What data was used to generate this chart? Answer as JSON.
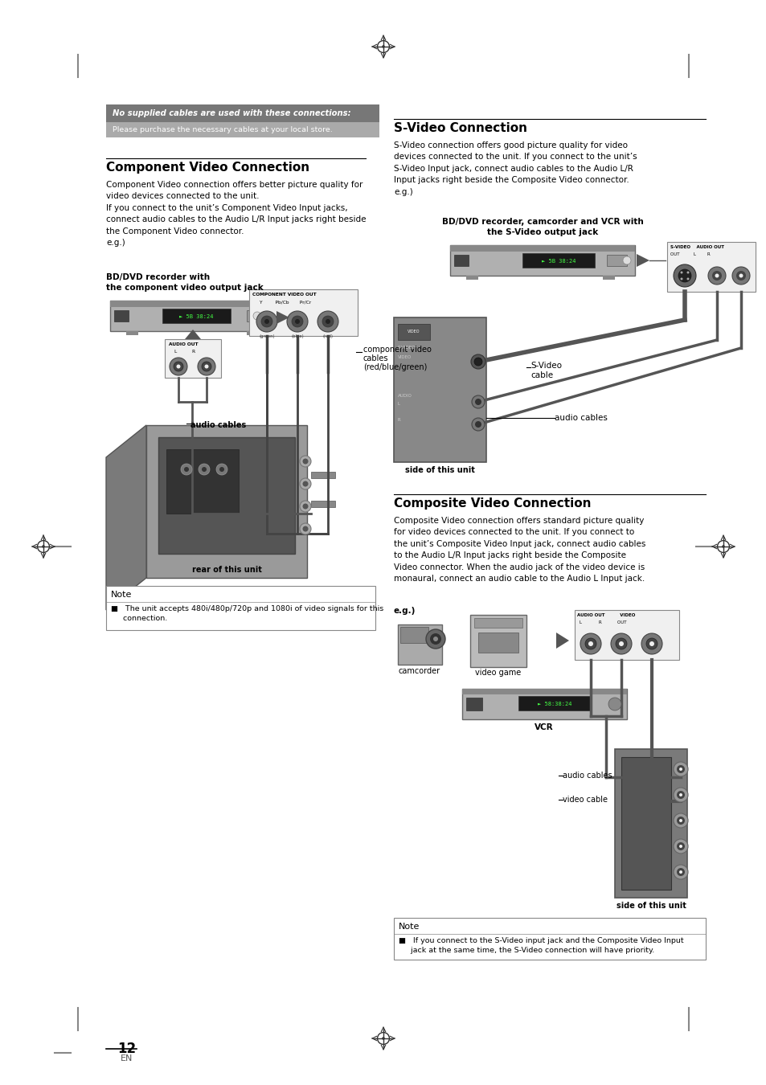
{
  "page_bg": "#ffffff",
  "page_number": "12",
  "page_number_sub": "EN",
  "notice_text1": "No supplied cables are used with these connections:",
  "notice_text2": "Please purchase the necessary cables at your local store.",
  "left_section_title": "Component Video Connection",
  "left_body_text": "Component Video connection offers better picture quality for\nvideo devices connected to the unit.\nIf you connect to the unit’s Component Video Input jacks,\nconnect audio cables to the Audio L/R Input jacks right beside\nthe Component Video connector.\ne.g.)",
  "left_device_label1": "BD/DVD recorder with",
  "left_device_label2": "the component video output jack",
  "left_cable_label1": "component video",
  "left_cable_label1b": "cables",
  "left_cable_label1c": "(red/blue/green)",
  "left_cable_label2": "audio cables",
  "left_unit_label": "rear of this unit",
  "left_note_title": "Note",
  "left_note_text1": "■   The unit accepts 480i/480p/720p and 1080i of video signals for this",
  "left_note_text2": "     connection.",
  "right_section_title": "S-Video Connection",
  "right_body_text": "S-Video connection offers good picture quality for video\ndevices connected to the unit. If you connect to the unit’s\nS-Video Input jack, connect audio cables to the Audio L/R\nInput jacks right beside the Composite Video connector.\ne.g.)",
  "right_device_label1": "BD/DVD recorder, camcorder and VCR with",
  "right_device_label2": "the S-Video output jack",
  "right_svideo_label1": "S-Video",
  "right_svideo_label2": "cable",
  "right_audio_label": "audio cables",
  "right_unit_label": "side of this unit",
  "right2_section_title": "Composite Video Connection",
  "right2_body_text": "Composite Video connection offers standard picture quality\nfor video devices connected to the unit. If you connect to\nthe unit’s Composite Video Input jack, connect audio cables\nto the Audio L/R Input jacks right beside the Composite\nVideo connector. When the audio jack of the video device is\nmonaural, connect an audio cable to the Audio L Input jack.",
  "right2_eg_text": "e.g.)",
  "right2_device1_label": "camcorder",
  "right2_device2_label": "video game",
  "right2_device3_label": "VCR",
  "right2_cable_label1": "audio cables",
  "right2_cable_label2": "video cable",
  "right2_unit_label": "side of this unit",
  "right2_note_title": "Note",
  "right2_note_text1": "■   If you connect to the S-Video input jack and the Composite Video Input",
  "right2_note_text2": "     jack at the same time, the S-Video connection will have priority."
}
